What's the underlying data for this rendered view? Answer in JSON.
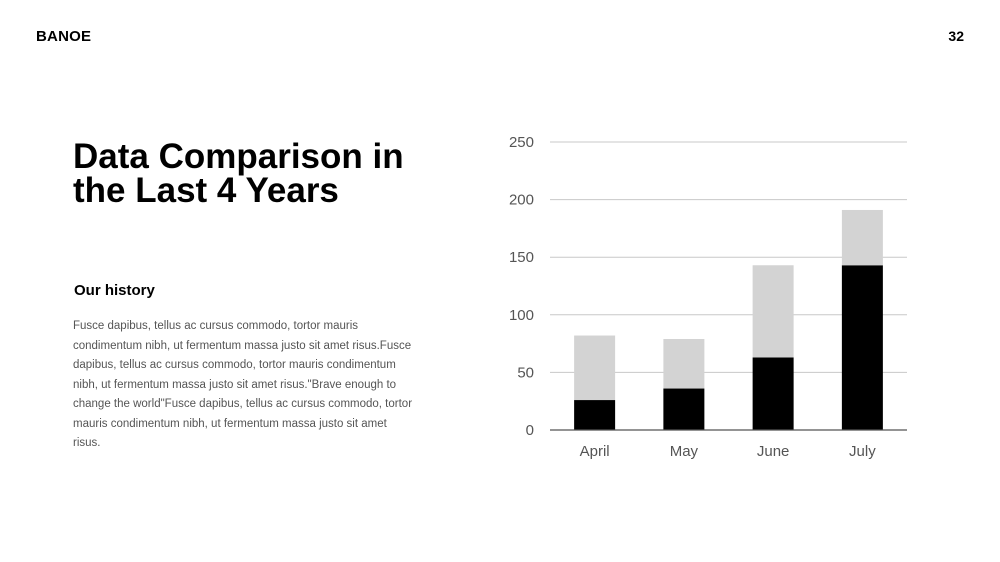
{
  "header": {
    "brand": "BANOE",
    "page_number": "32"
  },
  "slide": {
    "title": "Data Comparison in the Last 4 Years",
    "subtitle": "Our history",
    "body": "Fusce dapibus, tellus ac cursus commodo, tortor mauris condimentum nibh, ut fermentum massa justo sit amet risus.Fusce dapibus, tellus ac cursus commodo, tortor mauris condimentum nibh, ut fermentum massa justo sit amet risus.\"Brave enough to change the world\"Fusce dapibus, tellus ac cursus commodo, tortor mauris condimentum nibh, ut fermentum massa justo sit amet risus."
  },
  "chart_data": {
    "type": "bar",
    "stacked": true,
    "categories": [
      "April",
      "May",
      "June",
      "July"
    ],
    "series": [
      {
        "values": [
          26,
          36,
          63,
          143
        ],
        "color": "#000000"
      },
      {
        "values": [
          56,
          43,
          80,
          48
        ],
        "color": "#d3d3d3"
      }
    ],
    "ylim": [
      0,
      250
    ],
    "yticks": [
      0,
      50,
      100,
      150,
      200,
      250
    ],
    "grid": true,
    "legend": "none"
  }
}
